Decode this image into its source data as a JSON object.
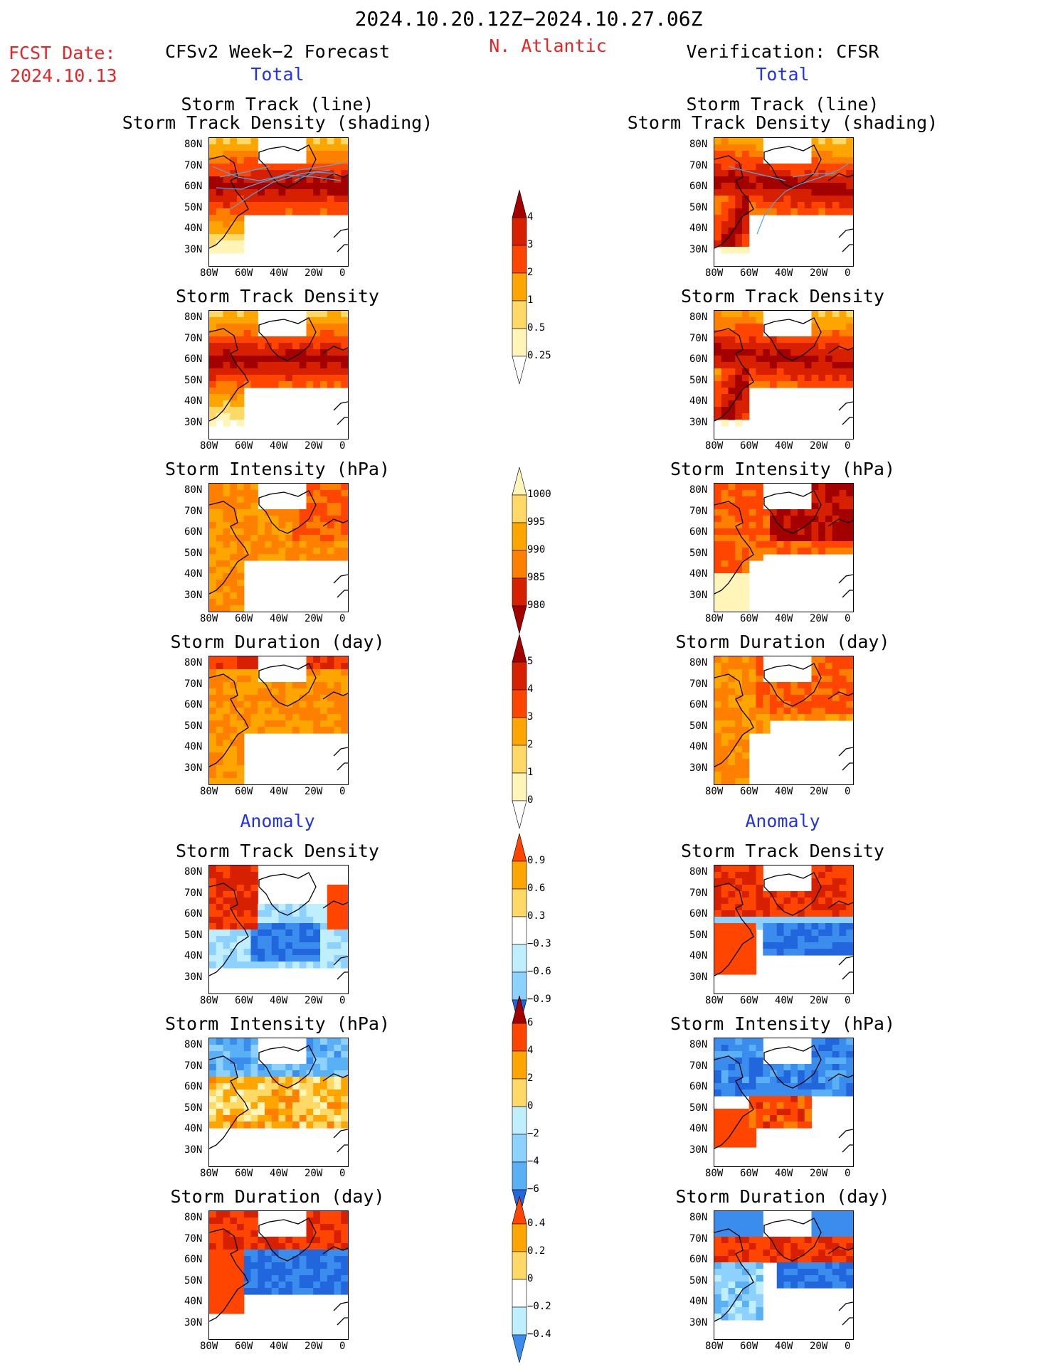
{
  "header": {
    "period": "2024.10.20.12Z−2024.10.27.06Z",
    "fcst_label": "FCST Date:",
    "fcst_date": "2024.10.13",
    "forecast_title": "CFSv2 Week−2 Forecast",
    "region": "N. Atlantic",
    "verification_title": "Verification: CFSR"
  },
  "sections": {
    "total": "Total",
    "anomaly": "Anomaly"
  },
  "panel_titles": {
    "track_line_1": "Storm Track (line)",
    "track_line_2": "Storm Track Density (shading)",
    "density": "Storm Track Density",
    "intensity": "Storm Intensity (hPa)",
    "duration": "Storm Duration (day)"
  },
  "axes": {
    "lat": [
      "80N",
      "70N",
      "60N",
      "50N",
      "40N",
      "30N"
    ],
    "lon": [
      "80W",
      "60W",
      "40W",
      "20W",
      "0"
    ]
  },
  "colorbars": {
    "density_total": [
      "4",
      "3",
      "2",
      "1",
      "0.5",
      "0.25"
    ],
    "intensity_total": [
      "1000",
      "995",
      "990",
      "985",
      "980"
    ],
    "duration_total": [
      "5",
      "4",
      "3",
      "2",
      "1",
      "0"
    ],
    "density_anom": [
      "0.9",
      "0.6",
      "0.3",
      "−0.3",
      "−0.6",
      "−0.9"
    ],
    "intensity_anom": [
      "6",
      "4",
      "2",
      "0",
      "−2",
      "−4",
      "−6"
    ],
    "duration_anom": [
      "0.4",
      "0.2",
      "0",
      "−0.2",
      "−0.4"
    ]
  },
  "palette": {
    "warm": [
      "#fff5b8",
      "#ffd966",
      "#ffa500",
      "#ff7f00",
      "#ff4500",
      "#d62000",
      "#a30000"
    ],
    "cool": [
      "#ffffff",
      "#bfefff",
      "#8cd1ff",
      "#5ab0f5",
      "#3b8ded",
      "#2266dd"
    ],
    "track_line": "#4aa8e8"
  }
}
